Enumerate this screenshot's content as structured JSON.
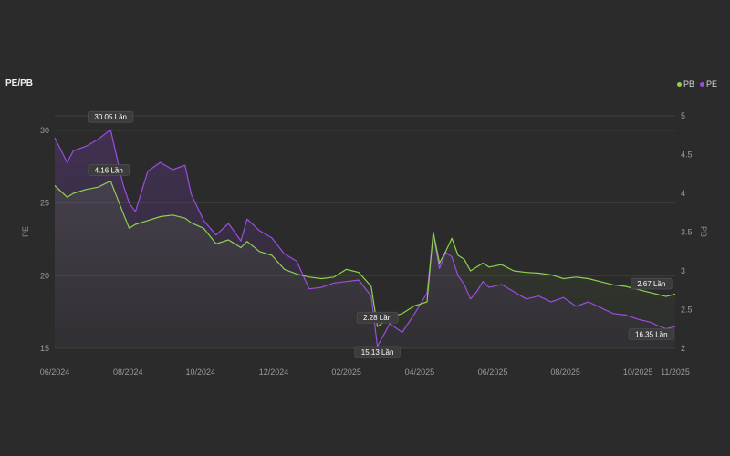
{
  "title": "PE/PB",
  "legend": [
    {
      "name": "PB",
      "color": "#8fd14f"
    },
    {
      "name": "PE",
      "color": "#9b4de0"
    }
  ],
  "chart_data": {
    "type": "line",
    "x_ticks": [
      "06/2024",
      "08/2024",
      "10/2024",
      "12/2024",
      "02/2025",
      "04/2025",
      "06/2025",
      "08/2025",
      "10/2025",
      "11/2025"
    ],
    "left_axis": {
      "label": "PE",
      "ticks": [
        15,
        20,
        25,
        30
      ],
      "range": [
        15,
        31
      ]
    },
    "right_axis": {
      "label": "PB",
      "ticks": [
        2,
        2.5,
        3,
        3.5,
        4,
        4.5,
        5
      ],
      "range": [
        2,
        5
      ]
    },
    "grid": true,
    "series": [
      {
        "name": "PE",
        "axis": "left",
        "color": "#9b4de0",
        "x": [
          0.0,
          0.02,
          0.03,
          0.05,
          0.07,
          0.09,
          0.11,
          0.12,
          0.13,
          0.15,
          0.17,
          0.19,
          0.21,
          0.22,
          0.24,
          0.26,
          0.28,
          0.3,
          0.31,
          0.33,
          0.35,
          0.37,
          0.39,
          0.41,
          0.43,
          0.45,
          0.47,
          0.49,
          0.51,
          0.52,
          0.54,
          0.56,
          0.58,
          0.6,
          0.61,
          0.62,
          0.63,
          0.64,
          0.65,
          0.66,
          0.67,
          0.68,
          0.69,
          0.7,
          0.72,
          0.74,
          0.76,
          0.78,
          0.8,
          0.82,
          0.84,
          0.86,
          0.88,
          0.9,
          0.92,
          0.94,
          0.96,
          0.97,
          0.985,
          1.0
        ],
        "values": [
          29.5,
          27.8,
          28.6,
          28.9,
          29.4,
          30.05,
          26.3,
          25.0,
          24.4,
          27.2,
          27.8,
          27.3,
          27.6,
          25.6,
          23.8,
          22.8,
          23.6,
          22.4,
          23.9,
          23.1,
          22.6,
          21.5,
          21.0,
          19.1,
          19.2,
          19.5,
          19.6,
          19.7,
          18.6,
          15.13,
          16.7,
          16.1,
          17.4,
          18.8,
          22.9,
          20.5,
          21.6,
          21.3,
          20.0,
          19.4,
          18.4,
          18.9,
          19.6,
          19.2,
          19.4,
          18.9,
          18.4,
          18.6,
          18.2,
          18.5,
          17.9,
          18.2,
          17.8,
          17.4,
          17.3,
          17.0,
          16.8,
          16.6,
          16.35,
          16.5
        ]
      },
      {
        "name": "PB",
        "axis": "right",
        "color": "#8fd14f",
        "x": [
          0.0,
          0.02,
          0.03,
          0.05,
          0.07,
          0.09,
          0.11,
          0.12,
          0.13,
          0.15,
          0.17,
          0.19,
          0.21,
          0.22,
          0.24,
          0.26,
          0.28,
          0.3,
          0.31,
          0.33,
          0.35,
          0.37,
          0.39,
          0.41,
          0.43,
          0.45,
          0.47,
          0.49,
          0.51,
          0.52,
          0.54,
          0.56,
          0.58,
          0.6,
          0.61,
          0.62,
          0.63,
          0.64,
          0.65,
          0.66,
          0.67,
          0.68,
          0.69,
          0.7,
          0.72,
          0.74,
          0.76,
          0.78,
          0.8,
          0.82,
          0.84,
          0.86,
          0.88,
          0.9,
          0.92,
          0.94,
          0.96,
          0.97,
          0.985,
          1.0
        ],
        "values": [
          4.1,
          3.95,
          4.0,
          4.05,
          4.08,
          4.16,
          3.75,
          3.55,
          3.6,
          3.65,
          3.7,
          3.72,
          3.68,
          3.62,
          3.55,
          3.35,
          3.4,
          3.3,
          3.38,
          3.25,
          3.2,
          3.02,
          2.96,
          2.92,
          2.9,
          2.92,
          3.02,
          2.98,
          2.8,
          2.28,
          2.4,
          2.45,
          2.55,
          2.6,
          3.5,
          3.1,
          3.25,
          3.42,
          3.2,
          3.15,
          3.0,
          3.05,
          3.1,
          3.05,
          3.08,
          3.0,
          2.98,
          2.97,
          2.95,
          2.9,
          2.92,
          2.9,
          2.86,
          2.82,
          2.8,
          2.76,
          2.72,
          2.7,
          2.67,
          2.7
        ]
      }
    ],
    "annotations": [
      {
        "text": "30.05 Lần",
        "series": "PE",
        "index": 5
      },
      {
        "text": "4.16 Lần",
        "series": "PB",
        "index": 5
      },
      {
        "text": "2.28 Lần",
        "series": "PB",
        "index": 29
      },
      {
        "text": "15.13 Lần",
        "series": "PE",
        "index": 29
      },
      {
        "text": "2.67 Lần",
        "series": "PB",
        "index": 58
      },
      {
        "text": "16.35 Lần",
        "series": "PE",
        "index": 58
      }
    ]
  }
}
